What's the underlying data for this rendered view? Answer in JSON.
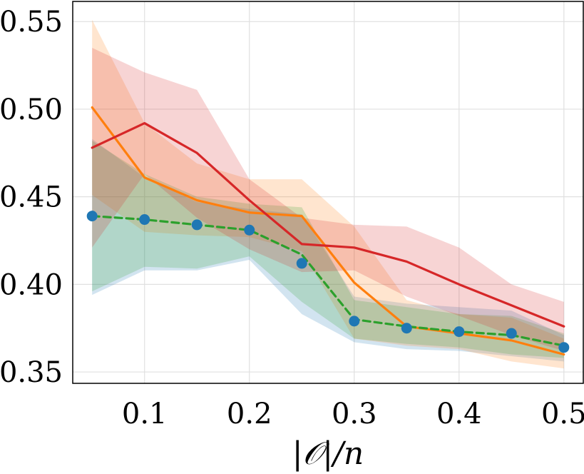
{
  "chart_data": {
    "type": "line",
    "title": "",
    "xlabel": "|𝒪|/n",
    "ylabel": "",
    "xlim": [
      0.0315,
      0.5185
    ],
    "ylim": [
      0.3435,
      0.5615
    ],
    "grid": true,
    "legend": "none",
    "x": [
      0.05,
      0.1,
      0.15,
      0.2,
      0.25,
      0.3,
      0.35,
      0.4,
      0.45,
      0.5
    ],
    "x_ticks": [
      0.1,
      0.2,
      0.3,
      0.4,
      0.5
    ],
    "x_tick_labels": [
      "0.1",
      "0.2",
      "0.3",
      "0.4",
      "0.5"
    ],
    "y_ticks": [
      0.35,
      0.4,
      0.45,
      0.5,
      0.55
    ],
    "y_tick_labels": [
      "0.35",
      "0.40",
      "0.45",
      "0.50",
      "0.55"
    ],
    "series": [
      {
        "color": "#1f77b4",
        "style": "markers",
        "values": [
          0.439,
          0.437,
          0.434,
          0.431,
          0.412,
          0.379,
          0.375,
          0.373,
          0.372,
          0.364
        ],
        "band_lower": [
          0.394,
          0.408,
          0.408,
          0.414,
          0.383,
          0.367,
          0.363,
          0.362,
          0.359,
          0.356
        ],
        "band_upper": [
          0.483,
          0.461,
          0.447,
          0.443,
          0.44,
          0.393,
          0.389,
          0.387,
          0.385,
          0.371
        ]
      },
      {
        "color": "#ff7f0e",
        "style": "solid",
        "values": [
          0.501,
          0.461,
          0.448,
          0.441,
          0.439,
          0.401,
          0.376,
          0.372,
          0.368,
          0.36
        ],
        "band_lower": [
          0.451,
          0.43,
          0.428,
          0.427,
          0.419,
          0.369,
          0.365,
          0.363,
          0.356,
          0.352
        ],
        "band_upper": [
          0.551,
          0.492,
          0.469,
          0.46,
          0.46,
          0.433,
          0.391,
          0.383,
          0.381,
          0.369
        ]
      },
      {
        "color": "#2ca02c",
        "style": "dashed",
        "values": [
          0.439,
          0.437,
          0.434,
          0.431,
          0.417,
          0.38,
          0.376,
          0.373,
          0.371,
          0.365
        ],
        "band_lower": [
          0.396,
          0.41,
          0.409,
          0.416,
          0.39,
          0.369,
          0.366,
          0.364,
          0.36,
          0.358
        ],
        "band_upper": [
          0.482,
          0.463,
          0.45,
          0.446,
          0.444,
          0.391,
          0.387,
          0.383,
          0.382,
          0.372
        ]
      },
      {
        "color": "#d62728",
        "style": "solid",
        "values": [
          0.478,
          0.492,
          0.475,
          0.448,
          0.423,
          0.421,
          0.413,
          0.4,
          0.388,
          0.376
        ],
        "band_lower": [
          0.421,
          0.463,
          0.438,
          0.42,
          0.407,
          0.408,
          0.393,
          0.382,
          0.371,
          0.362
        ],
        "band_upper": [
          0.535,
          0.521,
          0.511,
          0.46,
          0.438,
          0.434,
          0.433,
          0.421,
          0.4,
          0.39
        ]
      }
    ]
  }
}
